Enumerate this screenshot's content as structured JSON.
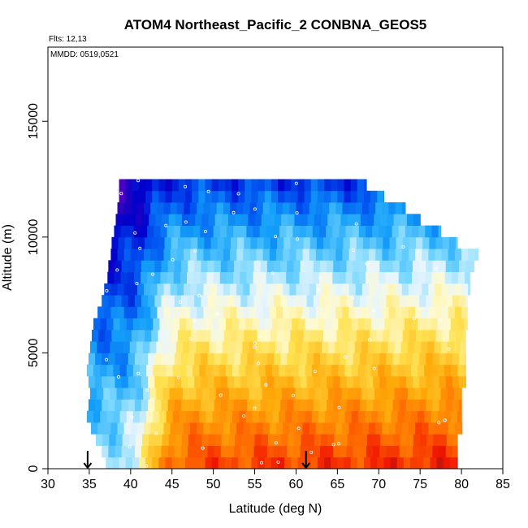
{
  "chart_data": {
    "type": "heatmap",
    "title": "ATOM4 Northeast_Pacific_2 CONBNA_GEOS5",
    "annotations": [
      "Flts: 12,13",
      "MMDD: 0519,0521"
    ],
    "xlabel": "Latitude (deg N)",
    "ylabel": "Altitude (m)",
    "xlim": [
      30,
      85
    ],
    "ylim": [
      0,
      18200
    ],
    "x_ticks": [
      30,
      35,
      40,
      45,
      50,
      55,
      60,
      65,
      70,
      75,
      80,
      85
    ],
    "y_ticks": [
      0,
      5000,
      10000,
      15000
    ],
    "y_tick_labels": [
      "0",
      "5000",
      "10000",
      "15000"
    ],
    "arrows_latitude": [
      34.8,
      61.2
    ],
    "grid": false,
    "legend": "none",
    "colormap": "blue-white-yellow-red (low to high)",
    "layers": [
      {
        "alt_min": 0,
        "alt_max": 500,
        "lat_min": 37.0,
        "lat_max": 79.5
      },
      {
        "alt_min": 500,
        "alt_max": 1000,
        "lat_min": 36.5,
        "lat_max": 79.5
      },
      {
        "alt_min": 1000,
        "alt_max": 1500,
        "lat_min": 35.8,
        "lat_max": 79.5
      },
      {
        "alt_min": 1500,
        "alt_max": 2000,
        "lat_min": 35.2,
        "lat_max": 80.0
      },
      {
        "alt_min": 2000,
        "alt_max": 2500,
        "lat_min": 34.7,
        "lat_max": 80.0
      },
      {
        "alt_min": 2500,
        "alt_max": 3000,
        "lat_min": 34.9,
        "lat_max": 80.0
      },
      {
        "alt_min": 3000,
        "alt_max": 3500,
        "lat_min": 35.1,
        "lat_max": 80.0
      },
      {
        "alt_min": 3500,
        "alt_max": 4000,
        "lat_min": 34.9,
        "lat_max": 80.5
      },
      {
        "alt_min": 4000,
        "alt_max": 4500,
        "lat_min": 34.7,
        "lat_max": 80.5
      },
      {
        "alt_min": 4500,
        "alt_max": 5000,
        "lat_min": 34.9,
        "lat_max": 80.5
      },
      {
        "alt_min": 5000,
        "alt_max": 5500,
        "lat_min": 35.1,
        "lat_max": 80.5
      },
      {
        "alt_min": 5500,
        "alt_max": 6000,
        "lat_min": 35.3,
        "lat_max": 80.5
      },
      {
        "alt_min": 6000,
        "alt_max": 6500,
        "lat_min": 35.5,
        "lat_max": 80.7
      },
      {
        "alt_min": 6500,
        "alt_max": 7000,
        "lat_min": 36.0,
        "lat_max": 80.7
      },
      {
        "alt_min": 7000,
        "alt_max": 7500,
        "lat_min": 36.5,
        "lat_max": 80.7
      },
      {
        "alt_min": 7500,
        "alt_max": 8000,
        "lat_min": 36.8,
        "lat_max": 81.0
      },
      {
        "alt_min": 8000,
        "alt_max": 8500,
        "lat_min": 37.2,
        "lat_max": 81.0
      },
      {
        "alt_min": 8500,
        "alt_max": 9000,
        "lat_min": 37.3,
        "lat_max": 81.5
      },
      {
        "alt_min": 9000,
        "alt_max": 9500,
        "lat_min": 37.6,
        "lat_max": 82.0
      },
      {
        "alt_min": 9500,
        "alt_max": 10000,
        "lat_min": 37.7,
        "lat_max": 79.5
      },
      {
        "alt_min": 10000,
        "alt_max": 10500,
        "lat_min": 38.0,
        "lat_max": 77.5
      },
      {
        "alt_min": 10500,
        "alt_max": 11000,
        "lat_min": 38.2,
        "lat_max": 75.0
      },
      {
        "alt_min": 11000,
        "alt_max": 11500,
        "lat_min": 38.4,
        "lat_max": 73.2
      },
      {
        "alt_min": 11500,
        "alt_max": 12000,
        "lat_min": 38.6,
        "lat_max": 70.6
      },
      {
        "alt_min": 12000,
        "alt_max": 12500,
        "lat_min": 38.6,
        "lat_max": 68.5
      }
    ]
  }
}
